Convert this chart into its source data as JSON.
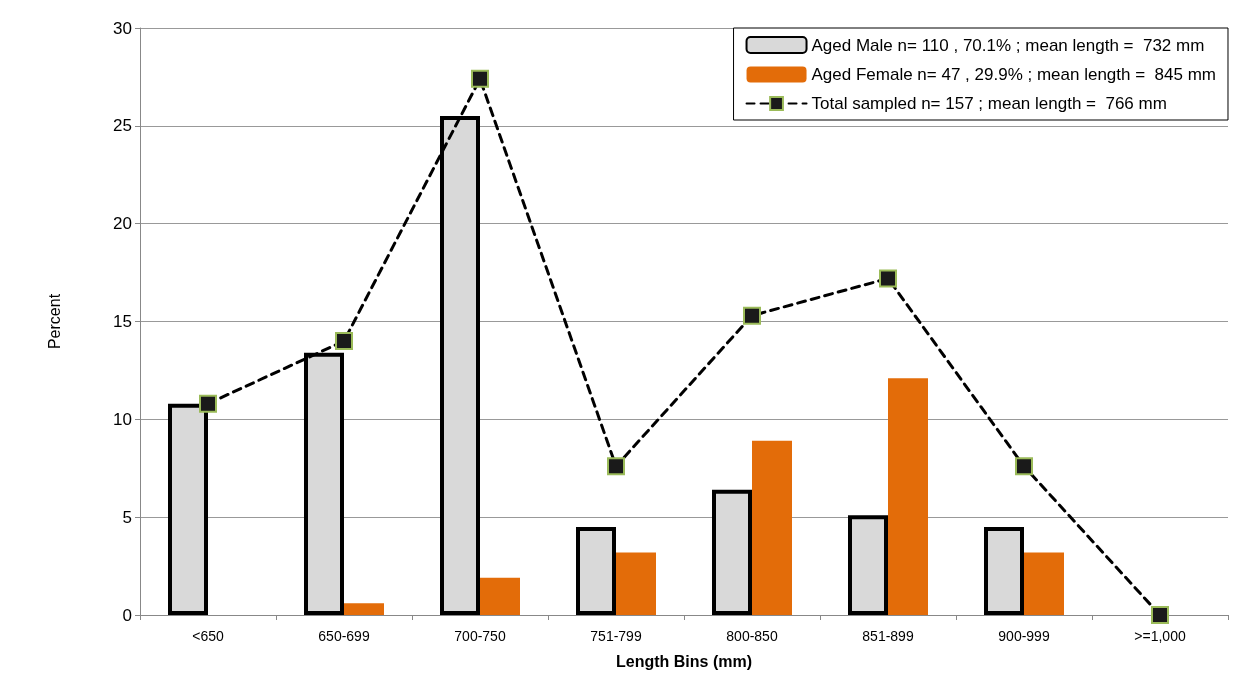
{
  "chart_data": {
    "type": "bar",
    "xlabel": "Length Bins (mm)",
    "ylabel": "Percent",
    "categories": [
      "<650",
      "650-699",
      "700-750",
      "751-799",
      "800-850",
      "851-899",
      "900-999",
      ">=1,000"
    ],
    "series": [
      {
        "name": "Aged Male n= 110 , 70.1% ; mean length =  732 mm",
        "color": "#d9d9d9",
        "values": [
          10.8,
          13.4,
          25.5,
          4.5,
          6.4,
          5.1,
          4.5,
          0
        ]
      },
      {
        "name": "Aged Female n= 47 , 29.9% ; mean length =  845 mm",
        "color": "#e36c09",
        "values": [
          0,
          0.6,
          1.9,
          3.2,
          8.9,
          12.1,
          3.2,
          0
        ]
      },
      {
        "name": "Total sampled n= 157 ; mean length =  766 mm",
        "type": "line",
        "color": "#000000",
        "marker": "square",
        "line_style": "dashed",
        "values": [
          10.8,
          14.0,
          27.4,
          7.6,
          15.3,
          17.2,
          7.6,
          0
        ]
      }
    ],
    "ylim": [
      0,
      30
    ],
    "yticks": [
      0,
      5,
      10,
      15,
      20,
      25,
      30
    ],
    "grid": "y",
    "legend": "top right"
  }
}
